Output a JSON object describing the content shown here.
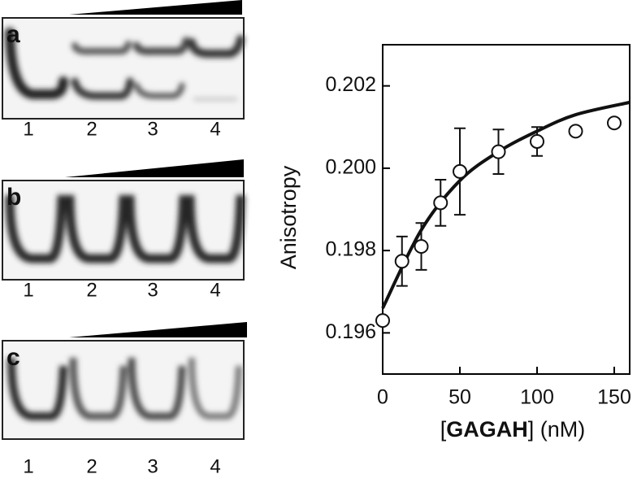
{
  "panels": [
    {
      "label": "a",
      "lanes": [
        "1",
        "2",
        "3",
        "4"
      ]
    },
    {
      "label": "b",
      "lanes": [
        "1",
        "2",
        "3",
        "4"
      ]
    },
    {
      "label": "c",
      "lanes": [
        "1",
        "2",
        "3",
        "4"
      ]
    }
  ],
  "chart_data": {
    "type": "scatter",
    "ylabel": "Anisotropy",
    "xlabel": {
      "open": "[",
      "name": "GAGAH",
      "close": "] (nM)"
    },
    "x": [
      0,
      12.5,
      25,
      37.5,
      50,
      75,
      100,
      125,
      150
    ],
    "series": [
      {
        "values": [
          0.1963,
          0.19774,
          0.1981,
          0.19916,
          0.19992,
          0.2004,
          0.20065,
          0.2009,
          0.2011
        ],
        "errors": [
          0,
          0.0006,
          0.00057,
          0.00056,
          0.00105,
          0.00054,
          0.00035,
          0.0001,
          0.0001
        ]
      }
    ],
    "fit": {
      "x": [
        0,
        25,
        50,
        75,
        100,
        125,
        160
      ],
      "values": [
        0.1966,
        0.1985,
        0.1997,
        0.2004,
        0.2009,
        0.2013,
        0.2016
      ]
    },
    "xlim": [
      0,
      160
    ],
    "ylim": [
      0.195,
      0.203
    ],
    "xticks": [
      0,
      50,
      100,
      150
    ],
    "yticks": [
      0.196,
      0.198,
      {
        "value": 0.2,
        "label": "0.200"
      },
      0.202
    ]
  }
}
